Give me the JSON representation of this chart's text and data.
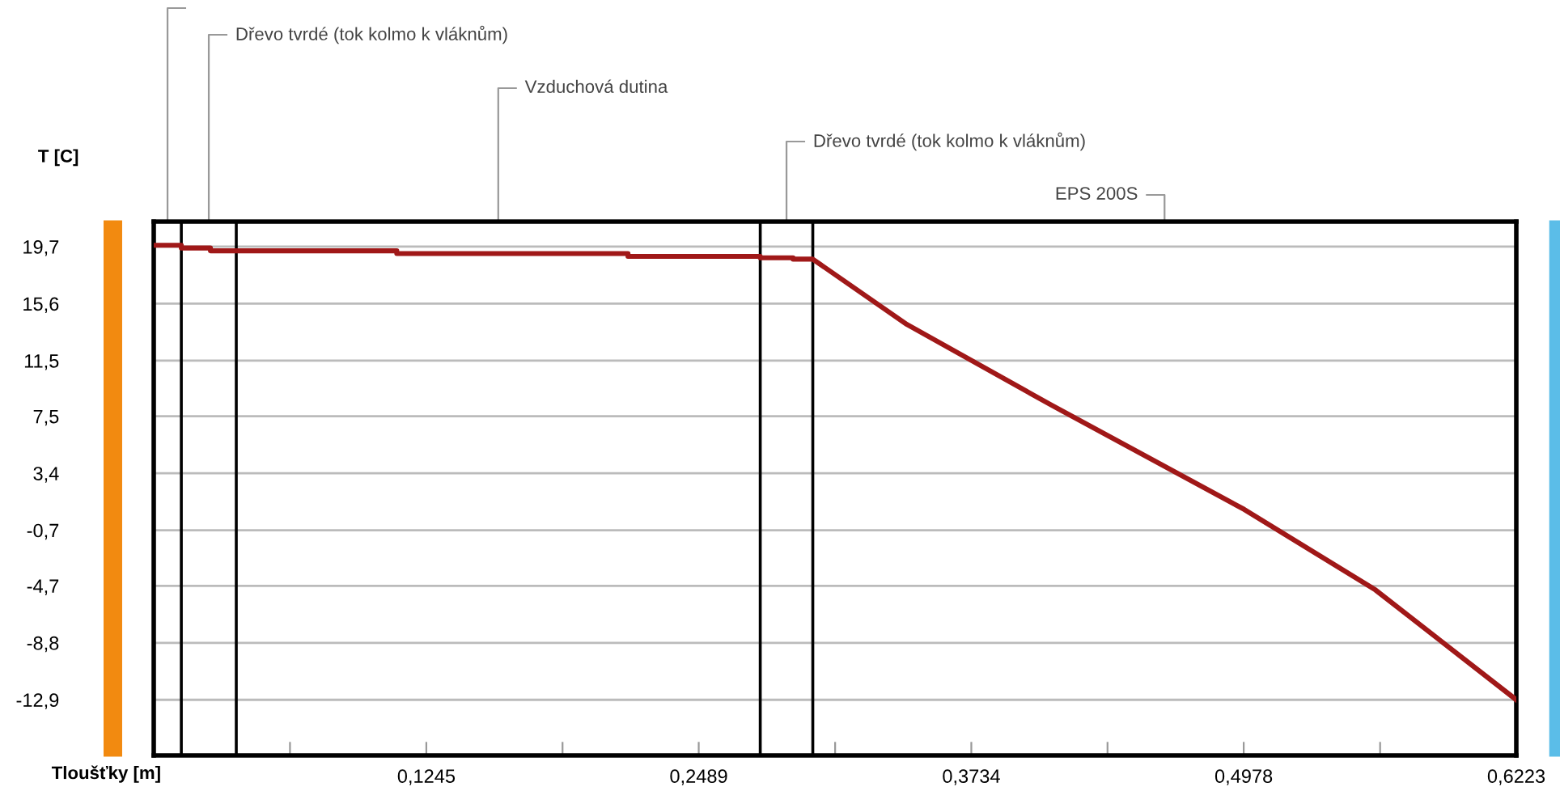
{
  "chart_data": {
    "type": "line",
    "ylabel": "T [C]",
    "xlabel": "Tloušťky [m]",
    "xlim": [
      0,
      0.6223
    ],
    "ylim": [
      -16.9,
      21.5
    ],
    "xticks": [
      {
        "value": 0.06223,
        "label": null
      },
      {
        "value": 0.1245,
        "label": "0,1245"
      },
      {
        "value": 0.1867,
        "label": null
      },
      {
        "value": 0.2489,
        "label": "0,2489"
      },
      {
        "value": 0.3112,
        "label": null
      },
      {
        "value": 0.3734,
        "label": "0,3734"
      },
      {
        "value": 0.4356,
        "label": null
      },
      {
        "value": 0.4978,
        "label": "0,4978"
      },
      {
        "value": 0.5601,
        "label": null
      },
      {
        "value": 0.6223,
        "label": "0,6223"
      }
    ],
    "yticks": [
      {
        "value": 19.7,
        "label": "19,7"
      },
      {
        "value": 15.6,
        "label": "15,6"
      },
      {
        "value": 11.5,
        "label": "11,5"
      },
      {
        "value": 7.5,
        "label": "7,5"
      },
      {
        "value": 3.4,
        "label": "3,4"
      },
      {
        "value": -0.7,
        "label": "-0,7"
      },
      {
        "value": -4.7,
        "label": "-4,7"
      },
      {
        "value": -8.8,
        "label": "-8,8"
      },
      {
        "value": -12.9,
        "label": "-12,9"
      }
    ],
    "grid": "y",
    "marker": "none",
    "line_style": "solid",
    "series": [
      {
        "color": "#a01818",
        "x": [
          0,
          0.0126,
          0.0126,
          0.0259,
          0.0259,
          0.111,
          0.111,
          0.2166,
          0.2166,
          0.277,
          0.277,
          0.292,
          0.292,
          0.301,
          0.344,
          0.41,
          0.498,
          0.558,
          0.6223
        ],
        "values": [
          19.8,
          19.8,
          19.6,
          19.6,
          19.4,
          19.4,
          19.2,
          19.2,
          19.0,
          19.0,
          18.9,
          18.9,
          18.8,
          18.8,
          14.1,
          8.3,
          0.8,
          -5.0,
          -12.9
        ]
      }
    ],
    "ref_lines": [
      {
        "axis": "x",
        "value": 0.0126,
        "color": "#000000"
      },
      {
        "axis": "x",
        "value": 0.0377,
        "color": "#000000"
      },
      {
        "axis": "x",
        "value": 0.277,
        "color": "#000000"
      },
      {
        "axis": "x",
        "value": 0.301,
        "color": "#000000"
      }
    ],
    "annotations": [
      "Dřevo tvrdé (tok kolmo k vláknům)",
      "Vzduchová dutina",
      "Dřevo tvrdé (tok kolmo k vláknům)",
      "EPS 200S"
    ]
  }
}
